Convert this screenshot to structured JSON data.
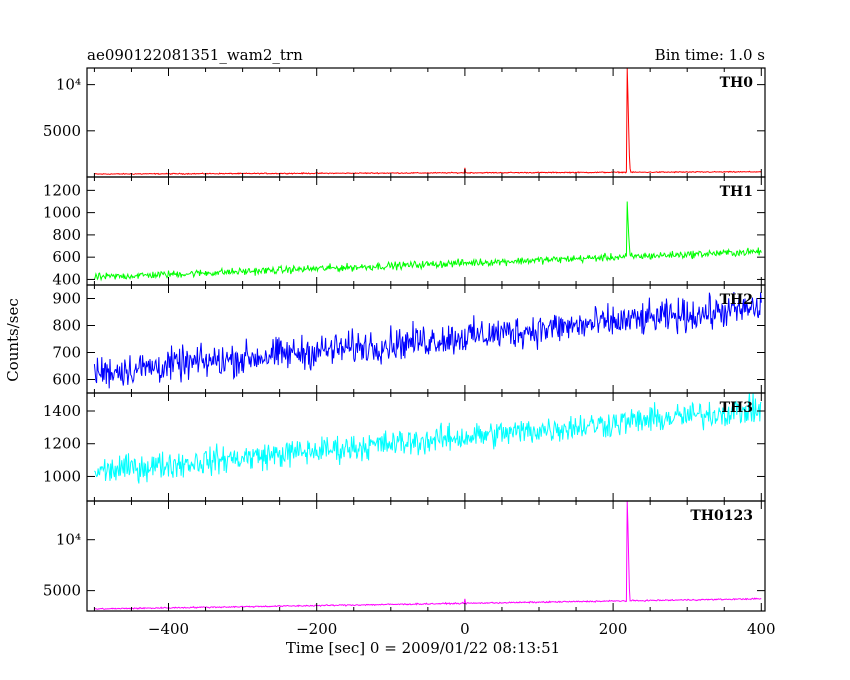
{
  "chart_data": {
    "type": "line",
    "title": "ae090122081351_wam2_trn",
    "bin_label": "Bin time: 1.0 s",
    "xlabel": "Time [sec] 0 = 2009/01/22 08:13:51",
    "ylabel": "Counts/sec",
    "xlim": [
      -510,
      405
    ],
    "x_ticks": [
      -400,
      -200,
      0,
      200,
      400
    ],
    "grid": false,
    "panels": [
      {
        "name": "TH0",
        "color": "#ff0000",
        "ylim": [
          0,
          11800
        ],
        "y_tick_values": [
          5000,
          10000
        ],
        "y_tick_labels": [
          "5000",
          "10⁴"
        ],
        "baseline_start": 320,
        "baseline_end": 560,
        "noise": 50,
        "spikes": [
          {
            "x": 0,
            "y": 1000
          },
          {
            "x": 219,
            "y": 11800
          },
          {
            "x": 220,
            "y": 9000
          },
          {
            "x": 221,
            "y": 5200
          },
          {
            "x": 222,
            "y": 2300
          },
          {
            "x": 223,
            "y": 900
          }
        ]
      },
      {
        "name": "TH1",
        "color": "#00ff00",
        "ylim": [
          350,
          1320
        ],
        "y_tick_values": [
          400,
          600,
          800,
          1000,
          1200
        ],
        "y_tick_labels": [
          "400",
          "600",
          "800",
          "1000",
          "1200"
        ],
        "baseline_start": 420,
        "baseline_end": 650,
        "noise": 30,
        "spikes": [
          {
            "x": 219,
            "y": 1100
          },
          {
            "x": 220,
            "y": 950
          },
          {
            "x": 221,
            "y": 800
          },
          {
            "x": 222,
            "y": 700
          }
        ]
      },
      {
        "name": "TH2",
        "color": "#0000ff",
        "ylim": [
          550,
          950
        ],
        "y_tick_values": [
          600,
          700,
          800,
          900
        ],
        "y_tick_labels": [
          "600",
          "700",
          "800",
          "900"
        ],
        "baseline_start": 625,
        "baseline_end": 865,
        "noise": 55,
        "spikes": []
      },
      {
        "name": "TH3",
        "color": "#00ffff",
        "ylim": [
          850,
          1510
        ],
        "y_tick_values": [
          1000,
          1200,
          1400
        ],
        "y_tick_labels": [
          "1000",
          "1200",
          "1400"
        ],
        "baseline_start": 1030,
        "baseline_end": 1410,
        "noise": 75,
        "spikes": []
      },
      {
        "name": "TH0123",
        "color": "#ff00ff",
        "ylim": [
          3000,
          13800
        ],
        "y_tick_values": [
          5000,
          10000
        ],
        "y_tick_labels": [
          "5000",
          "10⁴"
        ],
        "baseline_start": 3200,
        "baseline_end": 4200,
        "noise": 60,
        "spikes": [
          {
            "x": 0,
            "y": 4200
          },
          {
            "x": 219,
            "y": 13800
          },
          {
            "x": 220,
            "y": 11500
          },
          {
            "x": 221,
            "y": 8000
          },
          {
            "x": 222,
            "y": 5200
          }
        ]
      }
    ]
  }
}
